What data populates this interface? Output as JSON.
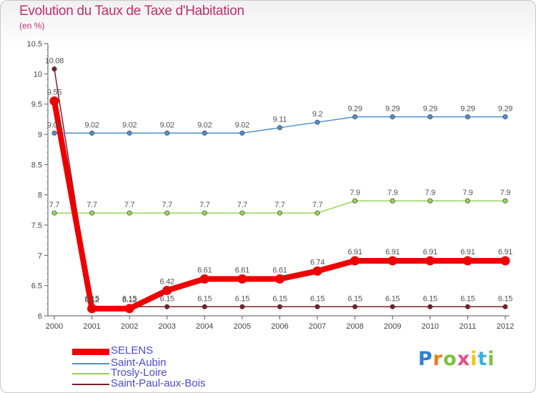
{
  "title": "Evolution du Taux de Taxe d'Habitation",
  "unit_label": "(en %)",
  "chart_data": {
    "type": "line",
    "title": "Evolution du Taux de Taxe d'Habitation",
    "ylabel": "(en %)",
    "xlabel": "",
    "x": [
      "2000",
      "2001",
      "2002",
      "2003",
      "2004",
      "2005",
      "2006",
      "2007",
      "2008",
      "2009",
      "2010",
      "2011",
      "2012"
    ],
    "ylim": [
      6,
      10.5
    ],
    "yticks": [
      "6",
      "6.5",
      "7",
      "7.5",
      "8",
      "8.5",
      "9",
      "9.5",
      "10",
      "10.5"
    ],
    "grid": "none",
    "legend_position": "bottom-left",
    "series": [
      {
        "name": "Saint-Paul-aux-Bois",
        "color": "#7a1f2b",
        "values": [
          10.08,
          6.15,
          6.15,
          6.15,
          6.15,
          6.15,
          6.15,
          6.15,
          6.15,
          6.15,
          6.15,
          6.15,
          6.15
        ],
        "labels": [
          "10.08",
          "6.15",
          "6.15",
          "6.15",
          "6.15",
          "6.15",
          "6.15",
          "6.15",
          "6.15",
          "6.15",
          "6.15",
          "6.15",
          "6.15"
        ]
      },
      {
        "name": "Trosly-Loire",
        "color": "#96d45c",
        "values": [
          7.7,
          7.7,
          7.7,
          7.7,
          7.7,
          7.7,
          7.7,
          7.7,
          7.9,
          7.9,
          7.9,
          7.9,
          7.9
        ],
        "labels": [
          "7.7",
          "7.7",
          "7.7",
          "7.7",
          "7.7",
          "7.7",
          "7.7",
          "7.7",
          "7.9",
          "7.9",
          "7.9",
          "7.9",
          "7.9"
        ]
      },
      {
        "name": "Saint-Aubin",
        "color": "#4f8fc7",
        "values": [
          9.02,
          9.02,
          9.02,
          9.02,
          9.02,
          9.02,
          9.11,
          9.2,
          9.29,
          9.29,
          9.29,
          9.29,
          9.29
        ],
        "labels": [
          "9.02",
          "9.02",
          "9.02",
          "9.02",
          "9.02",
          "9.02",
          "9.11",
          "9.2",
          "9.29",
          "9.29",
          "9.29",
          "9.29",
          "9.29"
        ]
      },
      {
        "name": "SELENS",
        "color": "#ee0000",
        "values": [
          9.55,
          6.12,
          6.12,
          6.42,
          6.61,
          6.61,
          6.61,
          6.74,
          6.91,
          6.91,
          6.91,
          6.91,
          6.91
        ],
        "labels": [
          "9.55",
          "6.12",
          "6.12",
          "6.42",
          "6.61",
          "6.61",
          "6.61",
          "6.74",
          "6.91",
          "6.91",
          "6.91",
          "6.91",
          "6.91"
        ]
      }
    ]
  },
  "legend": [
    {
      "label": "SELENS",
      "color": "#ee0000"
    },
    {
      "label": "Saint-Aubin",
      "color": "#4f8fc7"
    },
    {
      "label": "Trosly-Loire",
      "color": "#96d45c"
    },
    {
      "label": "Saint-Paul-aux-Bois",
      "color": "#7a1f2b"
    }
  ],
  "logo": {
    "letters": [
      "P",
      "r",
      "o",
      "x",
      "i",
      "t",
      "i"
    ],
    "colors": [
      "#2f7fd0",
      "#f07a18",
      "#7cc23a",
      "#e84a8c",
      "#f4c21c",
      "#38b3e0",
      "#7cc23a"
    ]
  }
}
